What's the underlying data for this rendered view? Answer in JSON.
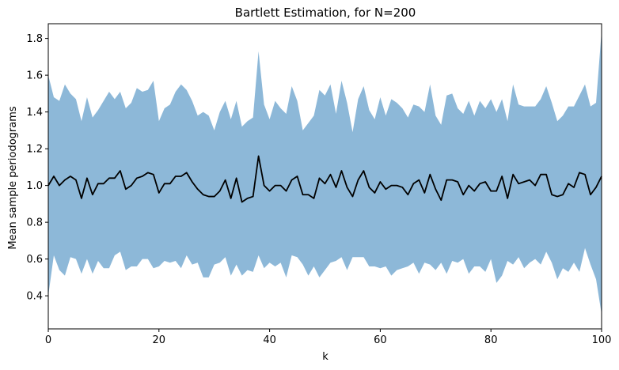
{
  "chart_data": {
    "type": "line",
    "title": "Bartlett Estimation, for N=200",
    "xlabel": "k",
    "ylabel": "Mean sample periodograms",
    "xlim": [
      0,
      100
    ],
    "ylim": [
      0.22,
      1.88
    ],
    "xticks": [
      0,
      20,
      40,
      60,
      80,
      100
    ],
    "yticks": [
      0.4,
      0.6,
      0.8,
      1.0,
      1.2,
      1.4,
      1.6,
      1.8
    ],
    "xtick_labels": [
      "0",
      "20",
      "40",
      "60",
      "80",
      "100"
    ],
    "ytick_labels": [
      "0.4",
      "0.6",
      "0.8",
      "1.0",
      "1.2",
      "1.4",
      "1.6",
      "1.8"
    ],
    "grid": false,
    "colors": {
      "band": "#8db8d8",
      "line": "#000000"
    },
    "x": [
      0,
      1,
      2,
      3,
      4,
      5,
      6,
      7,
      8,
      9,
      10,
      11,
      12,
      13,
      14,
      15,
      16,
      17,
      18,
      19,
      20,
      21,
      22,
      23,
      24,
      25,
      26,
      27,
      28,
      29,
      30,
      31,
      32,
      33,
      34,
      35,
      36,
      37,
      38,
      39,
      40,
      41,
      42,
      43,
      44,
      45,
      46,
      47,
      48,
      49,
      50,
      51,
      52,
      53,
      54,
      55,
      56,
      57,
      58,
      59,
      60,
      61,
      62,
      63,
      64,
      65,
      66,
      67,
      68,
      69,
      70,
      71,
      72,
      73,
      74,
      75,
      76,
      77,
      78,
      79,
      80,
      81,
      82,
      83,
      84,
      85,
      86,
      87,
      88,
      89,
      90,
      91,
      92,
      93,
      94,
      95,
      96,
      97,
      98,
      99,
      100
    ],
    "series": [
      {
        "role": "mean",
        "values": [
          1.0,
          1.05,
          1.0,
          1.03,
          1.05,
          1.03,
          0.93,
          1.04,
          0.95,
          1.01,
          1.01,
          1.04,
          1.04,
          1.08,
          0.98,
          1.0,
          1.04,
          1.05,
          1.07,
          1.06,
          0.96,
          1.01,
          1.01,
          1.05,
          1.05,
          1.07,
          1.02,
          0.98,
          0.95,
          0.94,
          0.94,
          0.97,
          1.03,
          0.93,
          1.04,
          0.91,
          0.93,
          0.94,
          1.16,
          1.0,
          0.97,
          1.0,
          1.0,
          0.97,
          1.03,
          1.05,
          0.95,
          0.95,
          0.93,
          1.04,
          1.01,
          1.06,
          0.99,
          1.08,
          0.99,
          0.94,
          1.03,
          1.08,
          0.99,
          0.96,
          1.02,
          0.98,
          1.0,
          1.0,
          0.99,
          0.95,
          1.01,
          1.03,
          0.96,
          1.06,
          0.98,
          0.92,
          1.03,
          1.03,
          1.02,
          0.95,
          1.0,
          0.97,
          1.01,
          1.02,
          0.97,
          0.97,
          1.05,
          0.93,
          1.06,
          1.01,
          1.02,
          1.03,
          1.0,
          1.06,
          1.06,
          0.95,
          0.94,
          0.95,
          1.01,
          0.99,
          1.07,
          1.06,
          0.95,
          0.99,
          1.05
        ]
      },
      {
        "role": "band-upper",
        "values": [
          1.6,
          1.48,
          1.46,
          1.55,
          1.5,
          1.47,
          1.35,
          1.48,
          1.37,
          1.41,
          1.46,
          1.51,
          1.47,
          1.51,
          1.42,
          1.45,
          1.53,
          1.51,
          1.52,
          1.57,
          1.35,
          1.42,
          1.44,
          1.51,
          1.55,
          1.52,
          1.46,
          1.38,
          1.4,
          1.38,
          1.3,
          1.4,
          1.46,
          1.36,
          1.46,
          1.32,
          1.35,
          1.37,
          1.73,
          1.44,
          1.36,
          1.46,
          1.42,
          1.39,
          1.54,
          1.46,
          1.3,
          1.34,
          1.38,
          1.52,
          1.49,
          1.55,
          1.39,
          1.57,
          1.45,
          1.29,
          1.47,
          1.54,
          1.41,
          1.36,
          1.48,
          1.38,
          1.47,
          1.45,
          1.42,
          1.37,
          1.44,
          1.43,
          1.4,
          1.55,
          1.38,
          1.33,
          1.49,
          1.5,
          1.42,
          1.39,
          1.46,
          1.38,
          1.46,
          1.42,
          1.47,
          1.4,
          1.47,
          1.35,
          1.55,
          1.44,
          1.43,
          1.43,
          1.43,
          1.47,
          1.54,
          1.45,
          1.35,
          1.38,
          1.43,
          1.43,
          1.49,
          1.55,
          1.43,
          1.45,
          1.84
        ]
      },
      {
        "role": "band-lower",
        "values": [
          0.4,
          0.62,
          0.54,
          0.51,
          0.61,
          0.6,
          0.52,
          0.6,
          0.52,
          0.59,
          0.55,
          0.55,
          0.62,
          0.64,
          0.54,
          0.56,
          0.56,
          0.6,
          0.6,
          0.55,
          0.56,
          0.59,
          0.58,
          0.59,
          0.55,
          0.62,
          0.57,
          0.58,
          0.5,
          0.5,
          0.57,
          0.58,
          0.61,
          0.51,
          0.57,
          0.51,
          0.54,
          0.53,
          0.62,
          0.55,
          0.58,
          0.56,
          0.58,
          0.5,
          0.62,
          0.61,
          0.57,
          0.51,
          0.56,
          0.5,
          0.54,
          0.58,
          0.59,
          0.61,
          0.54,
          0.61,
          0.61,
          0.61,
          0.56,
          0.56,
          0.55,
          0.56,
          0.51,
          0.54,
          0.55,
          0.56,
          0.58,
          0.52,
          0.58,
          0.57,
          0.54,
          0.58,
          0.52,
          0.59,
          0.58,
          0.6,
          0.52,
          0.56,
          0.56,
          0.53,
          0.6,
          0.47,
          0.51,
          0.59,
          0.57,
          0.61,
          0.55,
          0.58,
          0.6,
          0.57,
          0.64,
          0.58,
          0.49,
          0.55,
          0.53,
          0.58,
          0.53,
          0.66,
          0.57,
          0.49,
          0.3
        ]
      }
    ]
  }
}
